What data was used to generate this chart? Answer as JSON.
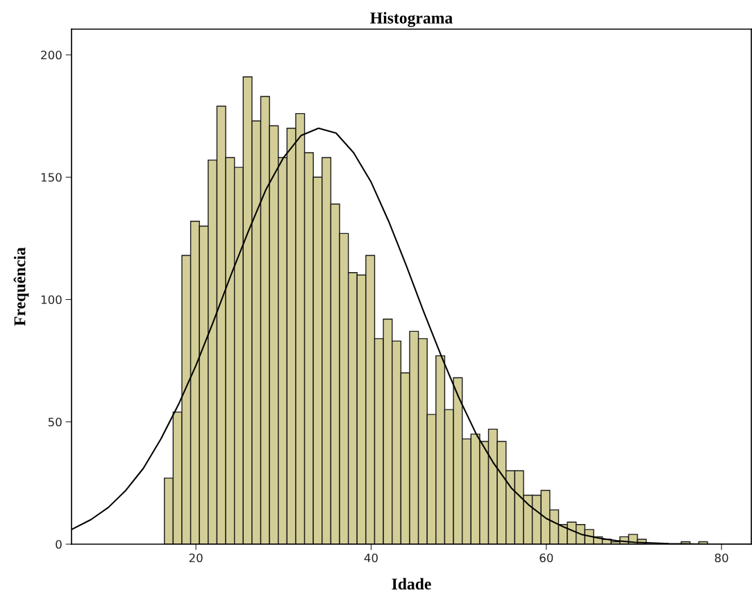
{
  "chart_data": {
    "type": "histogram",
    "title": "Histograma",
    "xlabel": "Idade",
    "ylabel": "Frequência",
    "bins": [
      16.4,
      17.4,
      18.4,
      19.4,
      20.4,
      21.4,
      22.4,
      23.4,
      24.4,
      25.4,
      26.4,
      27.4,
      28.4,
      29.4,
      30.4,
      31.4,
      32.4,
      33.4,
      34.4,
      35.4,
      36.4,
      37.4,
      38.4,
      39.4,
      40.4,
      41.4,
      42.4,
      43.4,
      44.4,
      45.4,
      46.4,
      47.4,
      48.4,
      49.4,
      50.4,
      51.4,
      52.4,
      53.4,
      54.4,
      55.4,
      56.4,
      57.4,
      58.4,
      59.4,
      60.4,
      61.4,
      62.4,
      63.4,
      64.4,
      65.4,
      66.4,
      67.4,
      68.4,
      69.4,
      70.4,
      71.4,
      72.4,
      73.4,
      74.4,
      75.4,
      76.4,
      77.4,
      78.4
    ],
    "values": [
      27,
      54,
      118,
      132,
      130,
      157,
      179,
      158,
      154,
      191,
      173,
      183,
      171,
      158,
      170,
      176,
      160,
      150,
      158,
      139,
      127,
      111,
      110,
      118,
      84,
      92,
      83,
      70,
      87,
      84,
      53,
      77,
      55,
      68,
      43,
      45,
      42,
      47,
      42,
      30,
      30,
      20,
      20,
      22,
      14,
      8,
      9,
      8,
      6,
      3,
      2,
      1,
      3,
      4,
      2,
      0,
      0,
      0,
      0,
      1,
      0,
      1
    ],
    "color": "#d3ce97",
    "series": [
      {
        "type": "line",
        "color": "#000000",
        "x": [
          5.8,
          8,
          10,
          12,
          14,
          16,
          18,
          20,
          22,
          24,
          26,
          28,
          30,
          32,
          34,
          36,
          38,
          40,
          42,
          44,
          46,
          48,
          50,
          52,
          54,
          56,
          58,
          60,
          62,
          64,
          66,
          68,
          70,
          74,
          78,
          83.4
        ],
        "values": [
          6,
          10,
          15,
          22,
          31,
          43,
          57,
          73,
          91,
          110,
          128,
          145,
          158,
          167,
          170,
          168,
          160,
          148,
          132,
          114,
          95,
          77,
          60,
          45,
          33,
          23,
          16,
          10.5,
          7,
          4,
          2.5,
          1.4,
          0.8,
          0.2,
          0,
          0
        ]
      }
    ],
    "xlim": [
      5.8,
      83.4
    ],
    "xticks": [
      20,
      40,
      60,
      80
    ],
    "ylim": [
      0,
      210.5
    ],
    "yticks": [
      0,
      50,
      100,
      150,
      200
    ],
    "grid": false,
    "legend": false
  }
}
